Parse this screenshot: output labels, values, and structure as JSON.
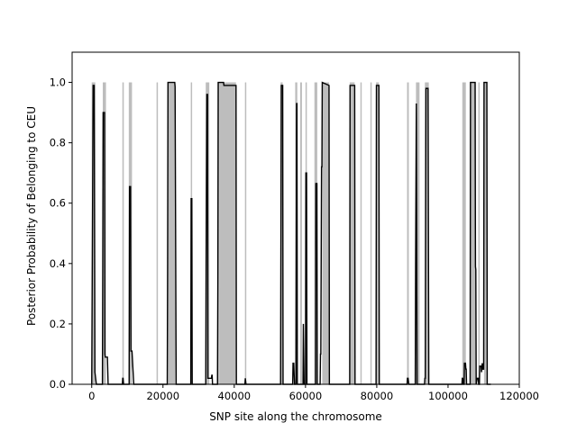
{
  "chart_data": {
    "type": "area",
    "title": "",
    "xlabel": "SNP site along the chromosome",
    "ylabel": "Posterior Probability of Belonging to CEU",
    "xlim": [
      -5500,
      120000
    ],
    "ylim": [
      0,
      1.1
    ],
    "x_ticks": [
      0,
      20000,
      40000,
      60000,
      80000,
      100000,
      120000
    ],
    "x_tick_labels": [
      "0",
      "20000",
      "40000",
      "60000",
      "80000",
      "100000",
      "120000"
    ],
    "y_ticks": [
      0,
      0.2,
      0.4,
      0.6,
      0.8,
      1.0
    ],
    "y_tick_labels": [
      "0.0",
      "0.2",
      "0.4",
      "0.6",
      "0.8",
      "1.0"
    ],
    "grid": false,
    "legend": "none",
    "true_ancestry_segments": [
      [
        0,
        1000
      ],
      [
        3100,
        4000
      ],
      [
        8600,
        9000
      ],
      [
        10400,
        11300
      ],
      [
        18200,
        18300
      ],
      [
        21400,
        23500
      ],
      [
        27800,
        28000
      ],
      [
        32000,
        33000
      ],
      [
        35300,
        35800
      ],
      [
        35800,
        40500
      ],
      [
        43000,
        43300
      ],
      [
        53000,
        53600
      ],
      [
        57100,
        57700
      ],
      [
        58500,
        59000
      ],
      [
        60000,
        60300
      ],
      [
        62500,
        63300
      ],
      [
        64700,
        66600
      ],
      [
        72400,
        73800
      ],
      [
        75400,
        75600
      ],
      [
        78200,
        78500
      ],
      [
        79800,
        80600
      ],
      [
        88500,
        89000
      ],
      [
        91000,
        92000
      ],
      [
        93500,
        94600
      ],
      [
        104000,
        105000
      ],
      [
        106200,
        107800
      ],
      [
        108500,
        108800
      ],
      [
        110100,
        111000
      ]
    ],
    "series": [
      {
        "color": "#000000",
        "x": [
          0,
          400,
          500,
          700,
          900,
          1100,
          1300,
          2000,
          3000,
          3100,
          3200,
          3600,
          3700,
          3800,
          4400,
          4600,
          8600,
          8700,
          8800,
          8950,
          9100,
          10500,
          10600,
          10900,
          11000,
          11200,
          11300,
          11800,
          18300,
          18500,
          21200,
          21300,
          21400,
          23300,
          23400,
          23700,
          27800,
          27900,
          28100,
          28200,
          32000,
          32100,
          32300,
          32500,
          32600,
          33600,
          33700,
          33800,
          33900,
          35300,
          35400,
          35500,
          37000,
          37100,
          40500,
          40600,
          43000,
          43100,
          43300,
          53000,
          53200,
          53600,
          53700,
          56400,
          56500,
          56700,
          56900,
          57300,
          57500,
          57600,
          57700,
          59300,
          59400,
          59600,
          60000,
          60100,
          60300,
          60400,
          62800,
          62900,
          63200,
          63300,
          64100,
          64200,
          64300,
          64500,
          64600,
          64700,
          66600,
          66700,
          72400,
          72500,
          73800,
          73900,
          79800,
          79900,
          80600,
          80700,
          88500,
          88600,
          88800,
          89000,
          90800,
          90900,
          91100,
          91300,
          93400,
          93500,
          93600,
          93800,
          94400,
          94600,
          94700,
          103900,
          104000,
          104100,
          104300,
          104500,
          104600,
          104900,
          105000,
          105100,
          105200,
          106200,
          106300,
          107600,
          107700,
          107800,
          107900,
          108200,
          108500,
          108600,
          108800,
          108900,
          109300,
          109400,
          109600,
          109800,
          110000,
          110100,
          110900,
          111000,
          112000
        ],
        "y": [
          0.0,
          0.99,
          0.99,
          0.99,
          0.04,
          0.02,
          0.0,
          0.0,
          0.0,
          0.4,
          0.9,
          0.9,
          0.1,
          0.09,
          0.09,
          0.0,
          0.0,
          0.02,
          0.02,
          0.0,
          0.0,
          0.0,
          0.655,
          0.655,
          0.11,
          0.11,
          0.11,
          0.0,
          0.0,
          0.0,
          0.0,
          0.4,
          1.0,
          1.0,
          0.985,
          0.0,
          0.0,
          0.615,
          0.615,
          0.0,
          0.0,
          0.4,
          0.96,
          0.96,
          0.02,
          0.02,
          0.03,
          0.03,
          0.0,
          0.0,
          0.35,
          1.0,
          1.0,
          0.99,
          0.99,
          0.0,
          0.0,
          0.02,
          0.0,
          0.0,
          0.99,
          0.99,
          0.0,
          0.0,
          0.07,
          0.07,
          0.0,
          0.0,
          0.93,
          0.93,
          0.0,
          0.0,
          0.2,
          0.0,
          0.0,
          0.7,
          0.7,
          0.0,
          0.0,
          0.665,
          0.665,
          0.0,
          0.0,
          0.1,
          0.1,
          0.72,
          0.72,
          1.0,
          0.99,
          0.0,
          0.0,
          0.99,
          0.99,
          0.0,
          0.0,
          0.99,
          0.99,
          0.0,
          0.0,
          0.02,
          0.02,
          0.0,
          0.0,
          0.4,
          0.93,
          0.0,
          0.0,
          0.02,
          0.02,
          0.98,
          0.98,
          0.0,
          0.0,
          0.0,
          0.02,
          0.02,
          0.0,
          0.0,
          0.07,
          0.07,
          0.05,
          0.05,
          0.0,
          0.0,
          1.0,
          1.0,
          0.39,
          0.38,
          0.0,
          0.02,
          0.02,
          0.0,
          0.0,
          0.06,
          0.06,
          0.04,
          0.07,
          0.05,
          0.05,
          1.0,
          1.0,
          0.0,
          0.0
        ]
      }
    ]
  }
}
